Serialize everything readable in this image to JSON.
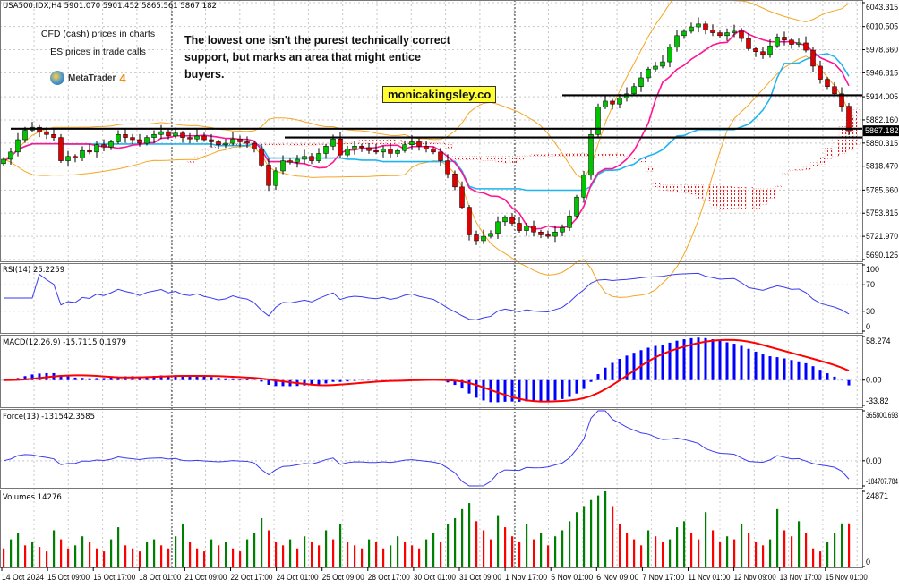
{
  "header": {
    "symbol_line": "USA500.IDX,H4  5901.070 5901.452 5865.561 5867.182"
  },
  "annotations": {
    "cfd_note": "CFD (cash) prices in charts",
    "es_note": "ES prices in trade calls",
    "comment": "The lowest one isn't the purest technically correct support, but marks an area that might entice buyers.",
    "brand": "monicakingsley.co",
    "logo_text": "MetaTrader",
    "logo_version": "4"
  },
  "colors": {
    "up_candle": "#00c400",
    "down_candle": "#e00000",
    "tenkan": "#ff1493",
    "kijun": "#1eb4f0",
    "bollinger": "#f5a623",
    "cloud": "#e02020",
    "indicator_line": "#3a3af0",
    "macd_hist": "#0000ff",
    "macd_signal": "#ff0000",
    "volume_up": "#008000",
    "volume_down": "#ff0000"
  },
  "chart_data": [
    {
      "type": "candlestick",
      "symbol": "USA500.IDX",
      "timeframe": "H4",
      "current_price": "5867.182",
      "price_axis_ticks": [
        "6043.315",
        "6010.505",
        "5978.660",
        "5946.815",
        "5914.005",
        "5882.160",
        "5850.315",
        "5818.470",
        "5785.660",
        "5753.815",
        "5721.970",
        "5690.125"
      ],
      "ylim": [
        5690.125,
        6043.315
      ],
      "x_tick_labels": [
        "14 Oct 2024",
        "15 Oct 09:00",
        "16 Oct 17:00",
        "18 Oct 01:00",
        "21 Oct 09:00",
        "22 Oct 17:00",
        "24 Oct 01:00",
        "25 Oct 09:00",
        "28 Oct 17:00",
        "30 Oct 01:00",
        "31 Oct 09:00",
        "1 Nov 17:00",
        "5 Nov 01:00",
        "6 Nov 09:00",
        "7 Nov 17:00",
        "11 Nov 01:00",
        "12 Nov 09:00",
        "13 Nov 17:00",
        "15 Nov 01:00"
      ],
      "close": [
        5828,
        5838,
        5855,
        5868,
        5872,
        5866,
        5862,
        5858,
        5826,
        5832,
        5830,
        5840,
        5838,
        5848,
        5845,
        5852,
        5862,
        5858,
        5855,
        5850,
        5858,
        5862,
        5866,
        5860,
        5864,
        5858,
        5856,
        5860,
        5855,
        5852,
        5848,
        5850,
        5856,
        5852,
        5850,
        5842,
        5820,
        5792,
        5812,
        5826,
        5824,
        5828,
        5832,
        5826,
        5836,
        5846,
        5856,
        5834,
        5842,
        5846,
        5844,
        5840,
        5838,
        5842,
        5836,
        5840,
        5848,
        5852,
        5846,
        5842,
        5838,
        5826,
        5808,
        5790,
        5762,
        5724,
        5716,
        5722,
        5726,
        5742,
        5748,
        5740,
        5730,
        5736,
        5728,
        5724,
        5722,
        5728,
        5734,
        5750,
        5776,
        5806,
        5862,
        5900,
        5908,
        5904,
        5912,
        5918,
        5928,
        5940,
        5952,
        5956,
        5962,
        5982,
        5998,
        6004,
        6010,
        6014,
        6006,
        6002,
        5998,
        6002,
        6004,
        5994,
        5980,
        5976,
        5972,
        5984,
        5996,
        5992,
        5986,
        5988,
        5978,
        5956,
        5938,
        5928,
        5918,
        5901,
        5867.182
      ],
      "horizontal_lines": [
        5916,
        5870,
        5858
      ]
    },
    {
      "type": "line",
      "label": "RSI(14) 25.2259",
      "ticks": [
        "100",
        "70",
        "30",
        "0"
      ],
      "ylim": [
        0,
        100
      ]
    },
    {
      "type": "bar",
      "label": "MACD(12,26,9) -15.7115 0.1979",
      "ticks": [
        "58.274",
        "0.00",
        "-33.82"
      ],
      "ylim": [
        -33.82,
        58.274
      ]
    },
    {
      "type": "line",
      "label": "Force(13) -131542.3585",
      "ticks": [
        "365800.693",
        "0.00",
        "-184707.784"
      ],
      "ylim": [
        -184707.784,
        365800.693
      ]
    },
    {
      "type": "bar",
      "label": "Volumes 14276",
      "ticks": [
        "24871",
        "0"
      ],
      "ylim": [
        0,
        24871
      ],
      "values": [
        6000,
        9000,
        11000,
        7000,
        8000,
        6500,
        5000,
        12000,
        9000,
        6000,
        7000,
        10000,
        8000,
        6000,
        5000,
        9000,
        13000,
        7000,
        6000,
        5000,
        8000,
        9000,
        7000,
        6000,
        10000,
        14000,
        8000,
        6000,
        5000,
        9000,
        7000,
        8000,
        6000,
        5000,
        9000,
        11000,
        16000,
        12000,
        8000,
        7000,
        9000,
        6000,
        10000,
        8000,
        7000,
        12000,
        9000,
        14000,
        8000,
        7000,
        6000,
        9000,
        8000,
        6000,
        7000,
        10000,
        8000,
        7000,
        6000,
        9000,
        11000,
        8000,
        14000,
        16000,
        19000,
        21000,
        15000,
        12000,
        9000,
        17000,
        13000,
        10000,
        8000,
        14000,
        9000,
        11000,
        7000,
        10000,
        12000,
        15000,
        18000,
        20000,
        22000,
        23500,
        24871,
        20000,
        14000,
        11000,
        9000,
        7000,
        12000,
        10000,
        8000,
        9000,
        13000,
        15000,
        11000,
        9000,
        18000,
        12000,
        8000,
        10000,
        9000,
        14000,
        11000,
        8000,
        7000,
        9000,
        19000,
        12000,
        10000,
        15000,
        11000,
        6000,
        5000,
        8000,
        11000,
        14276,
        14276
      ]
    }
  ]
}
